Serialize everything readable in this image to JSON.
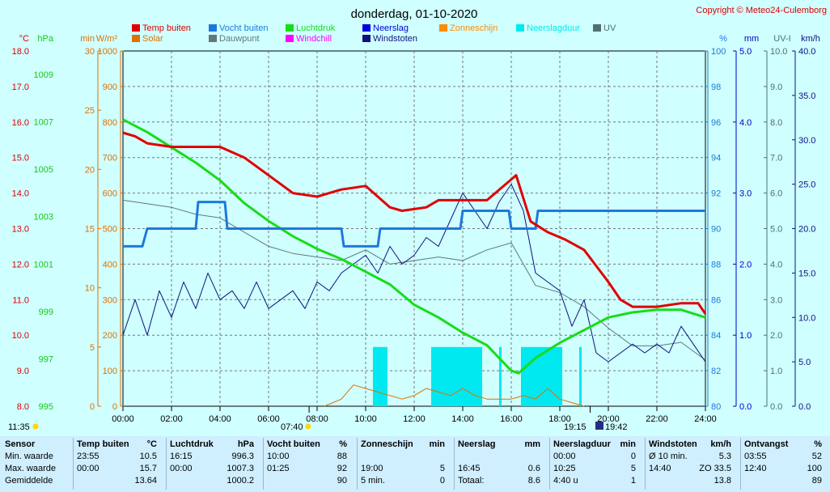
{
  "header": {
    "title": "donderdag, 01-10-2020",
    "copyright": "Copyright © Meteo24-Culemborg"
  },
  "colors": {
    "bg": "#cfffff",
    "temp": "#e00000",
    "humidity": "#1e78dc",
    "pressure": "#18dc18",
    "gusts": "#101080",
    "dewpoint": "#607878",
    "uv": "#507070",
    "solar": "#e07000",
    "sun": "#ff8c00",
    "rain": "#0000e0",
    "rain_duration": "#00e8f0",
    "windchill": "#ff00ff"
  },
  "axes": {
    "left": [
      {
        "unit": "°C",
        "color": "#e00000",
        "ticks": [
          "18.0",
          "17.0",
          "16.0",
          "15.0",
          "14.0",
          "13.0",
          "12.0",
          "11.0",
          "10.0",
          "9.0",
          "8.0"
        ]
      },
      {
        "unit": "hPa",
        "color": "#18c818",
        "ticks": [
          "1009",
          "1007",
          "1005",
          "1003",
          "1001",
          "999",
          "997",
          "995"
        ]
      },
      {
        "unit": "min",
        "color": "#e07000",
        "ticks": [
          "30",
          "25",
          "20",
          "15",
          "10",
          "5",
          "0"
        ]
      },
      {
        "unit": "W/m²",
        "color": "#e07000",
        "ticks": [
          "1000",
          "900",
          "800",
          "700",
          "600",
          "500",
          "400",
          "300",
          "200",
          "100",
          "0"
        ]
      }
    ],
    "right": [
      {
        "unit": "%",
        "color": "#1e78dc",
        "ticks": [
          "100",
          "98",
          "96",
          "94",
          "92",
          "90",
          "88",
          "86",
          "84",
          "82",
          "80"
        ]
      },
      {
        "unit": "mm",
        "color": "#0000c8",
        "ticks": [
          "5.0",
          "4.0",
          "3.0",
          "2.0",
          "1.0",
          "0.0"
        ]
      },
      {
        "unit": "UV-I",
        "color": "#507070",
        "ticks": [
          "10.0",
          "9.0",
          "8.0",
          "7.0",
          "6.0",
          "5.0",
          "4.0",
          "3.0",
          "2.0",
          "1.0",
          "0.0"
        ]
      },
      {
        "unit": "km/h",
        "color": "#101080",
        "ticks": [
          "40.0",
          "35.0",
          "30.0",
          "25.0",
          "20.0",
          "15.0",
          "10.0",
          "5.0",
          "0.0"
        ]
      }
    ],
    "x_ticks": [
      "00:00",
      "02:00",
      "04:00",
      "06:00",
      "08:00",
      "10:00",
      "12:00",
      "14:00",
      "16:00",
      "18:00",
      "20:00",
      "22:00",
      "24:00"
    ],
    "markers": {
      "sunrise_label": "07:40",
      "sunset_label": "19:15",
      "moon_label": "19:42",
      "daylength_label": "11:35"
    }
  },
  "legend": [
    {
      "label": "Temp buiten",
      "color": "#e00000"
    },
    {
      "label": "Vocht buiten",
      "color": "#1e78dc"
    },
    {
      "label": "Luchtdruk",
      "color": "#18dc18"
    },
    {
      "label": "Neerslag",
      "color": "#0000e0"
    },
    {
      "label": "Zonneschijn",
      "color": "#ff8c00"
    },
    {
      "label": "Neerslagduur",
      "color": "#00e8f0"
    },
    {
      "label": "UV",
      "color": "#507070"
    },
    {
      "label": "Solar",
      "color": "#e07000"
    },
    {
      "label": "Dauwpunt",
      "color": "#607878"
    },
    {
      "label": "Windchill",
      "color": "#ff00ff"
    },
    {
      "label": "Windstoten",
      "color": "#101080"
    }
  ],
  "chart_data": {
    "type": "line",
    "x_range_hours": [
      0,
      24
    ],
    "series": [
      {
        "name": "Temp buiten",
        "unit": "°C",
        "axis_range": [
          8,
          18
        ],
        "points": [
          [
            0,
            15.7
          ],
          [
            0.5,
            15.6
          ],
          [
            1,
            15.4
          ],
          [
            2,
            15.3
          ],
          [
            3,
            15.3
          ],
          [
            4,
            15.3
          ],
          [
            5,
            15.0
          ],
          [
            6,
            14.5
          ],
          [
            7,
            14.0
          ],
          [
            8,
            13.9
          ],
          [
            8.5,
            14.0
          ],
          [
            9,
            14.1
          ],
          [
            10,
            14.2
          ],
          [
            11,
            13.6
          ],
          [
            11.5,
            13.5
          ],
          [
            12.5,
            13.6
          ],
          [
            13,
            13.8
          ],
          [
            14,
            13.8
          ],
          [
            15,
            13.8
          ],
          [
            16.2,
            14.5
          ],
          [
            16.8,
            13.2
          ],
          [
            17.5,
            12.9
          ],
          [
            18.2,
            12.7
          ],
          [
            19,
            12.4
          ],
          [
            20,
            11.5
          ],
          [
            20.5,
            11.0
          ],
          [
            21,
            10.8
          ],
          [
            22,
            10.8
          ],
          [
            23,
            10.9
          ],
          [
            23.7,
            10.9
          ],
          [
            24,
            10.6
          ]
        ]
      },
      {
        "name": "Vocht buiten",
        "unit": "%",
        "axis_range": [
          80,
          100
        ],
        "points": [
          [
            0,
            89
          ],
          [
            0.8,
            89
          ],
          [
            1,
            90
          ],
          [
            3,
            90
          ],
          [
            3.1,
            91.5
          ],
          [
            4.2,
            91.5
          ],
          [
            4.3,
            90
          ],
          [
            9,
            90
          ],
          [
            9.1,
            89
          ],
          [
            10.5,
            89
          ],
          [
            10.6,
            90
          ],
          [
            13.9,
            90
          ],
          [
            14,
            91
          ],
          [
            15.9,
            91
          ],
          [
            16,
            90
          ],
          [
            17,
            90
          ],
          [
            17.1,
            91
          ],
          [
            24,
            91
          ]
        ]
      },
      {
        "name": "Luchtdruk",
        "unit": "hPa",
        "axis_range": [
          995,
          1009
        ],
        "points": [
          [
            0,
            1006.3
          ],
          [
            1,
            1005.8
          ],
          [
            2,
            1005.2
          ],
          [
            3,
            1004.6
          ],
          [
            4,
            1003.9
          ],
          [
            5,
            1003.0
          ],
          [
            6,
            1002.3
          ],
          [
            7,
            1001.7
          ],
          [
            8,
            1001.2
          ],
          [
            9,
            1000.8
          ],
          [
            10,
            1000.3
          ],
          [
            11,
            999.8
          ],
          [
            12,
            999.0
          ],
          [
            13,
            998.5
          ],
          [
            14,
            997.9
          ],
          [
            15,
            997.4
          ],
          [
            16,
            996.4
          ],
          [
            16.3,
            996.3
          ],
          [
            17,
            996.9
          ],
          [
            18,
            997.5
          ],
          [
            19,
            998.0
          ],
          [
            20,
            998.5
          ],
          [
            21,
            998.7
          ],
          [
            22,
            998.8
          ],
          [
            23,
            998.8
          ],
          [
            24,
            998.5
          ]
        ]
      },
      {
        "name": "Dauwpunt",
        "unit": "°C",
        "axis_range": [
          8,
          18
        ],
        "points": [
          [
            0,
            13.8
          ],
          [
            1,
            13.7
          ],
          [
            2,
            13.6
          ],
          [
            3,
            13.4
          ],
          [
            4,
            13.3
          ],
          [
            5,
            12.9
          ],
          [
            6,
            12.5
          ],
          [
            7,
            12.3
          ],
          [
            8,
            12.2
          ],
          [
            9,
            12.1
          ],
          [
            10,
            12.4
          ],
          [
            11,
            12.0
          ],
          [
            12,
            12.1
          ],
          [
            13,
            12.2
          ],
          [
            14,
            12.1
          ],
          [
            15,
            12.4
          ],
          [
            16,
            12.6
          ],
          [
            17,
            11.4
          ],
          [
            18,
            11.2
          ],
          [
            19,
            10.8
          ],
          [
            20,
            10.2
          ],
          [
            21,
            9.7
          ],
          [
            22,
            9.7
          ],
          [
            23,
            9.8
          ],
          [
            24,
            9.3
          ]
        ]
      },
      {
        "name": "Windstoten",
        "unit": "km/h",
        "axis_range": [
          0,
          40
        ],
        "max": 33.5,
        "average": 13.8,
        "points": [
          [
            0,
            8
          ],
          [
            0.5,
            12
          ],
          [
            1,
            8
          ],
          [
            1.5,
            13
          ],
          [
            2,
            10
          ],
          [
            2.5,
            14
          ],
          [
            3,
            11
          ],
          [
            3.5,
            15
          ],
          [
            4,
            12
          ],
          [
            4.5,
            13
          ],
          [
            5,
            11
          ],
          [
            5.5,
            14
          ],
          [
            6,
            11
          ],
          [
            6.5,
            12
          ],
          [
            7,
            13
          ],
          [
            7.5,
            11
          ],
          [
            8,
            14
          ],
          [
            8.5,
            13
          ],
          [
            9,
            15
          ],
          [
            9.5,
            16
          ],
          [
            10,
            17
          ],
          [
            10.5,
            15
          ],
          [
            11,
            18
          ],
          [
            11.5,
            16
          ],
          [
            12,
            17
          ],
          [
            12.5,
            19
          ],
          [
            13,
            18
          ],
          [
            13.5,
            21
          ],
          [
            14,
            24
          ],
          [
            14.5,
            22
          ],
          [
            15,
            20
          ],
          [
            15.5,
            23
          ],
          [
            16,
            25
          ],
          [
            16.5,
            22
          ],
          [
            17,
            15
          ],
          [
            17.5,
            14
          ],
          [
            18,
            13
          ],
          [
            18.5,
            9
          ],
          [
            19,
            12
          ],
          [
            19.5,
            6
          ],
          [
            20,
            5
          ],
          [
            20.5,
            6
          ],
          [
            21,
            7
          ],
          [
            21.5,
            6
          ],
          [
            22,
            7
          ],
          [
            22.5,
            6
          ],
          [
            23,
            9
          ],
          [
            23.5,
            7
          ],
          [
            24,
            5
          ]
        ]
      },
      {
        "name": "Solar",
        "unit": "W/m²",
        "axis_range": [
          0,
          1000
        ],
        "points": [
          [
            8.3,
            0
          ],
          [
            9,
            20
          ],
          [
            9.5,
            60
          ],
          [
            10,
            50
          ],
          [
            10.5,
            40
          ],
          [
            11,
            30
          ],
          [
            11.5,
            20
          ],
          [
            12,
            30
          ],
          [
            12.5,
            50
          ],
          [
            13,
            40
          ],
          [
            13.5,
            30
          ],
          [
            14,
            50
          ],
          [
            14.5,
            30
          ],
          [
            15,
            20
          ],
          [
            15.5,
            20
          ],
          [
            16,
            20
          ],
          [
            16.5,
            30
          ],
          [
            17,
            20
          ],
          [
            17.5,
            50
          ],
          [
            18,
            20
          ],
          [
            18.5,
            10
          ],
          [
            19,
            0
          ]
        ]
      },
      {
        "name": "Neerslagduur",
        "unit": "min",
        "axis_range": [
          0,
          30
        ],
        "bars": [
          [
            10.3,
            10.9,
            5
          ],
          [
            12.7,
            14.8,
            5
          ],
          [
            15.5,
            15.6,
            5
          ],
          [
            16.4,
            18.1,
            5
          ],
          [
            18.8,
            18.9,
            5
          ]
        ]
      }
    ]
  },
  "stats": {
    "blocks": [
      {
        "title": "Sensor",
        "unit": "",
        "rows": [
          [
            "Min. waarde",
            "",
            ""
          ],
          [
            "Max. waarde",
            "",
            ""
          ],
          [
            "Gemiddelde",
            "",
            ""
          ]
        ]
      },
      {
        "title": "Temp buiten",
        "unit": "°C",
        "rows": [
          [
            "23:55",
            "10.5"
          ],
          [
            "00:00",
            "15.7"
          ],
          [
            "",
            "13.64"
          ]
        ]
      },
      {
        "title": "Luchtdruk",
        "unit": "hPa",
        "rows": [
          [
            "16:15",
            "996.3"
          ],
          [
            "00:00",
            "1007.3"
          ],
          [
            "",
            "1000.2"
          ]
        ]
      },
      {
        "title": "Vocht buiten",
        "unit": "%",
        "rows": [
          [
            "10:00",
            "88"
          ],
          [
            "01:25",
            "92"
          ],
          [
            "",
            "90"
          ]
        ]
      },
      {
        "title": "Zonneschijn",
        "unit": "min",
        "rows": [
          [
            "",
            ""
          ],
          [
            "19:00",
            "5"
          ],
          [
            "5 min.",
            "0"
          ]
        ]
      },
      {
        "title": "Neerslag",
        "unit": "mm",
        "rows": [
          [
            "",
            ""
          ],
          [
            "16:45",
            "0.6"
          ],
          [
            "Totaal:",
            "8.6"
          ]
        ]
      },
      {
        "title": "Neerslagduur",
        "unit": "min",
        "rows": [
          [
            "00:00",
            "0"
          ],
          [
            "10:25",
            "5"
          ],
          [
            "4:40 u",
            "1"
          ]
        ]
      },
      {
        "title": "Windstoten",
        "unit": "km/h",
        "rows": [
          [
            "Ø 10 min.",
            "5.3"
          ],
          [
            "14:40",
            "ZO 33.5"
          ],
          [
            "",
            "13.8"
          ]
        ]
      },
      {
        "title": "Ontvangst",
        "unit": "%",
        "rows": [
          [
            "03:55",
            "52"
          ],
          [
            "12:40",
            "100"
          ],
          [
            "",
            "89"
          ]
        ]
      }
    ]
  }
}
